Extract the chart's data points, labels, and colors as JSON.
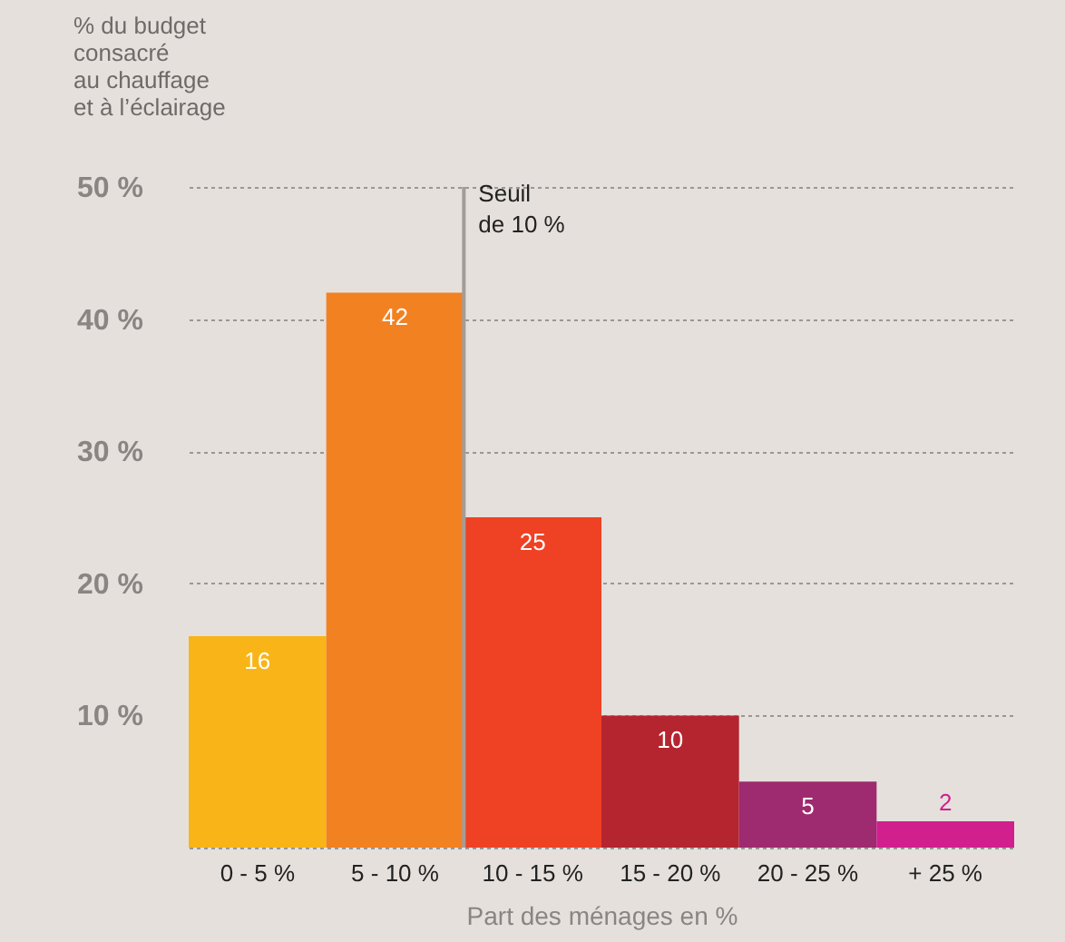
{
  "chart_data": {
    "type": "bar",
    "ylabel": "% du budget\nconsacré\nau chauffage\net à l’éclairage",
    "xlabel": "Part des ménages en %",
    "categories": [
      "0 - 5 %",
      "5 - 10 %",
      "10 - 15 %",
      "15 - 20 %",
      "20 - 25 %",
      "+ 25 %"
    ],
    "values": [
      16,
      42,
      25,
      10,
      5,
      2
    ],
    "colors": [
      "#f9b417",
      "#f28121",
      "#ef4123",
      "#b5252f",
      "#9e2a6f",
      "#d11f8e"
    ],
    "data_labels": true,
    "ylim": [
      0,
      50
    ],
    "yticks": [
      {
        "value": 0,
        "label": null
      },
      {
        "value": 10,
        "label": "10 %"
      },
      {
        "value": 20,
        "label": "20 %"
      },
      {
        "value": 30,
        "label": "30 %"
      },
      {
        "value": 40,
        "label": "40 %"
      },
      {
        "value": 50,
        "label": "50 %"
      }
    ],
    "grid": "y",
    "ref_lines": [
      {
        "axis": "x",
        "value": "10 - 15 %",
        "label": "Seuil\nde 10 %",
        "color": "#a39c99"
      }
    ]
  }
}
